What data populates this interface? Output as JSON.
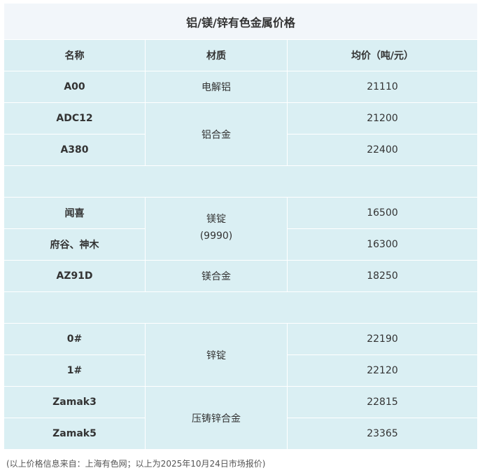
{
  "title": "铝/镁/锌有色金属价格",
  "headers": {
    "name": "名称",
    "material": "材质",
    "price": "均价（吨/元）"
  },
  "rows": [
    {
      "name": "A00",
      "material": "电解铝",
      "price": "21110"
    },
    {
      "name": "ADC12",
      "material": "铝合金",
      "price": "21200"
    },
    {
      "name": "A380",
      "price": "22400"
    },
    {
      "name": "闻喜",
      "material": "镁锭",
      "material_sub": "(9990)",
      "price": "16500"
    },
    {
      "name": "府谷、神木",
      "price": "16300"
    },
    {
      "name": "AZ91D",
      "material": "镁合金",
      "price": "18250"
    },
    {
      "name": "0#",
      "material": "锌锭",
      "price": "22190"
    },
    {
      "name": "1#",
      "price": "22120"
    },
    {
      "name": "Zamak3",
      "material": "压铸锌合金",
      "price": "22815"
    },
    {
      "name": "Zamak5",
      "price": "23365"
    }
  ],
  "footnote": "(以上价格信息来自：上海有色网；以上为2025年10月24日市场报价)"
}
